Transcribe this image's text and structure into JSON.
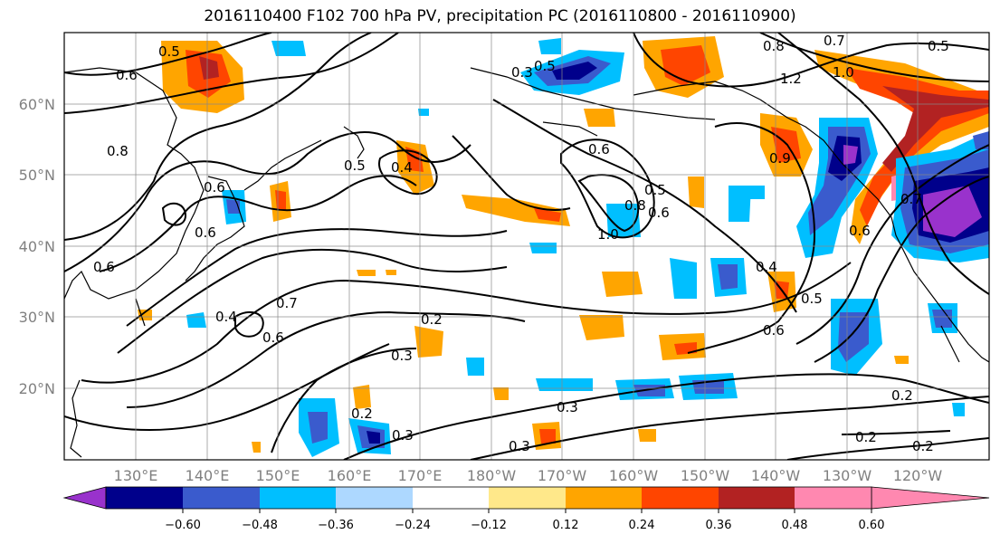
{
  "title": "2016110400 F102 700 hPa PV, precipitation PC (2016110800 - 2016110900)",
  "lat_labels": [
    "60°N",
    "50°N",
    "40°N",
    "30°N",
    "20°N"
  ],
  "lon_labels": [
    "130°E",
    "140°E",
    "150°E",
    "160°E",
    "170°E",
    "180°W",
    "170°W",
    "160°W",
    "150°W",
    "140°W",
    "130°W",
    "120°W"
  ],
  "colorbar": {
    "ticks": [
      "−0.60",
      "−0.48",
      "−0.36",
      "−0.24",
      "−0.12",
      "0.12",
      "0.24",
      "0.36",
      "0.48",
      "0.60"
    ],
    "colors": [
      "#9932cc",
      "#00008b",
      "#3a5bcd",
      "#00bfff",
      "#add8ff",
      "#ffffff",
      "#ffe88a",
      "#ffa500",
      "#ff4500",
      "#b22222",
      "#ff88b0"
    ]
  },
  "contour_labels": [
    "0.5",
    "0.6",
    "0.8",
    "0.7",
    "0.5",
    "1.0",
    "1.2",
    "0.3",
    "0.5",
    "0.4",
    "0.6",
    "0.8",
    "0.6",
    "0.6",
    "0.5",
    "0.7",
    "0.6",
    "0.8",
    "1.0",
    "0.4",
    "0.6",
    "0.5",
    "0.9",
    "0.6",
    "0.4",
    "0.7",
    "0.6",
    "0.2",
    "0.3",
    "0.2",
    "0.3",
    "0.3",
    "0.3",
    "0.2",
    "0.2",
    "0.2",
    "0.6",
    "0.5"
  ]
}
